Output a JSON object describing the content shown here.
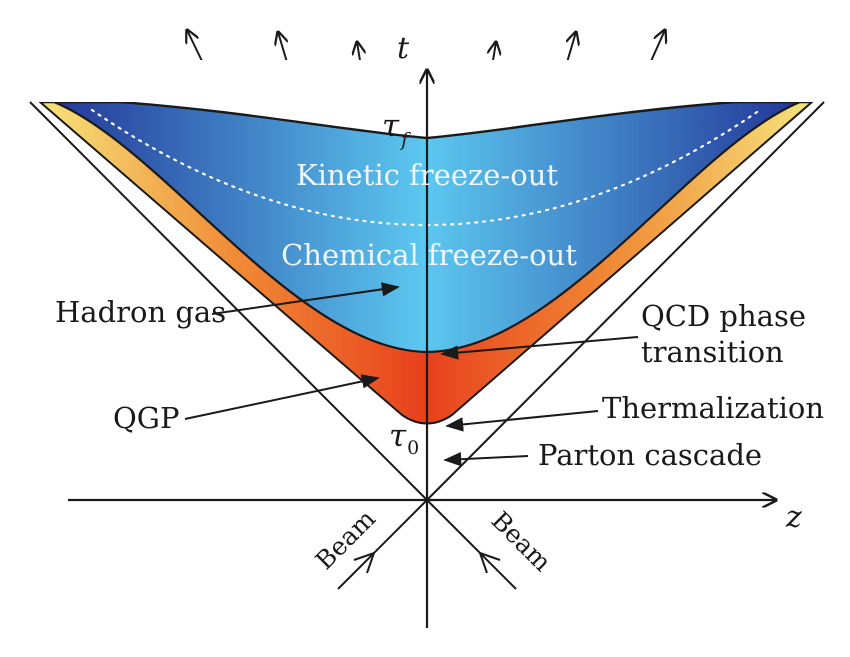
{
  "axes": {
    "time_label": "t",
    "space_label": "z"
  },
  "proper_times": {
    "freeze_out": {
      "symbol": "τ",
      "subscript": "f"
    },
    "initial": {
      "symbol": "τ",
      "subscript": "0"
    }
  },
  "regions": {
    "kinetic_freeze_out": "Kinetic freeze-out",
    "chemical_freeze_out": "Chemical freeze-out"
  },
  "labels": {
    "hadron_gas": "Hadron gas",
    "qcd_phase_transition_line1": "QCD phase",
    "qcd_phase_transition_line2": "transition",
    "qgp": "QGP",
    "thermalization": "Thermalization",
    "parton_cascade": "Parton cascade"
  },
  "beams": {
    "left": "Beam",
    "right": "Beam"
  },
  "colors": {
    "hadron_edge": "#243a9a",
    "hadron_center": "#5cc8f0",
    "qgp_core": "#e8401c",
    "qgp_mid": "#f08a35",
    "qgp_edge": "#f6e27a"
  }
}
